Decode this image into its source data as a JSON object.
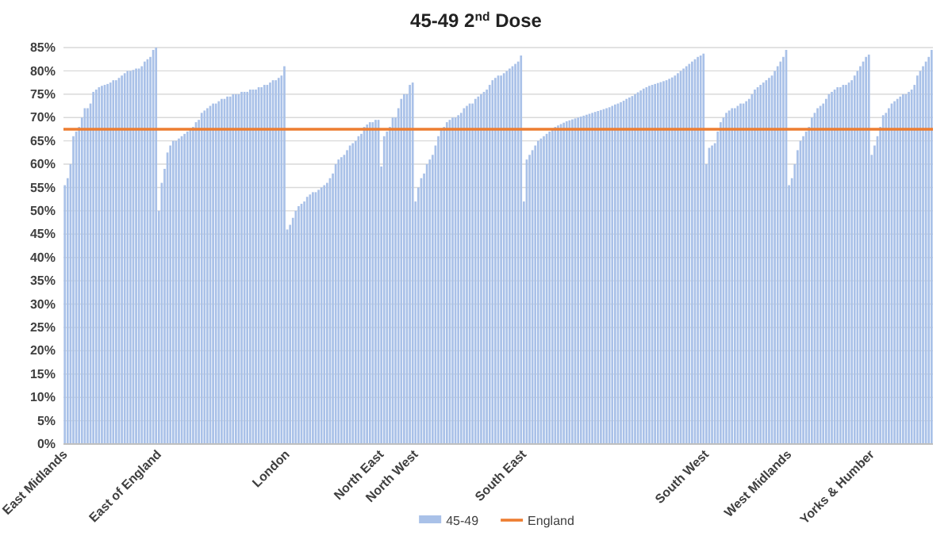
{
  "chart_data": {
    "type": "bar",
    "title": "45-49 2$^{nd}$ Dose",
    "categories": [
      "East Midlands",
      null,
      null,
      null,
      null,
      null,
      null,
      null,
      null,
      null,
      null,
      null,
      null,
      null,
      null,
      null,
      null,
      null,
      null,
      null,
      null,
      null,
      null,
      null,
      null,
      null,
      null,
      null,
      null,
      null,
      null,
      null,
      null,
      "East of England",
      null,
      null,
      null,
      null,
      null,
      null,
      null,
      null,
      null,
      null,
      null,
      null,
      null,
      null,
      null,
      null,
      null,
      null,
      null,
      null,
      null,
      null,
      null,
      null,
      null,
      null,
      null,
      null,
      null,
      null,
      null,
      null,
      null,
      null,
      null,
      null,
      null,
      null,
      null,
      null,
      null,
      null,
      null,
      null,
      "London",
      null,
      null,
      null,
      null,
      null,
      null,
      null,
      null,
      null,
      null,
      null,
      null,
      null,
      null,
      null,
      null,
      null,
      null,
      null,
      null,
      null,
      null,
      null,
      null,
      null,
      null,
      null,
      null,
      null,
      null,
      null,
      null,
      "North East",
      null,
      null,
      null,
      null,
      null,
      null,
      null,
      null,
      null,
      null,
      null,
      "North West",
      null,
      null,
      null,
      null,
      null,
      null,
      null,
      null,
      null,
      null,
      null,
      null,
      null,
      null,
      null,
      null,
      null,
      null,
      null,
      null,
      null,
      null,
      null,
      null,
      null,
      null,
      null,
      null,
      null,
      null,
      null,
      null,
      null,
      null,
      null,
      null,
      null,
      "South East",
      null,
      null,
      null,
      null,
      null,
      null,
      null,
      null,
      null,
      null,
      null,
      null,
      null,
      null,
      null,
      null,
      null,
      null,
      null,
      null,
      null,
      null,
      null,
      null,
      null,
      null,
      null,
      null,
      null,
      null,
      null,
      null,
      null,
      null,
      null,
      null,
      null,
      null,
      null,
      null,
      null,
      null,
      null,
      null,
      null,
      null,
      null,
      null,
      null,
      null,
      null,
      null,
      null,
      null,
      null,
      null,
      null,
      null,
      null,
      null,
      null,
      null,
      null,
      "South West",
      null,
      null,
      null,
      null,
      null,
      null,
      null,
      null,
      null,
      null,
      null,
      null,
      null,
      null,
      null,
      null,
      null,
      null,
      null,
      null,
      null,
      null,
      null,
      null,
      null,
      null,
      null,
      null,
      "West Midlands",
      null,
      null,
      null,
      null,
      null,
      null,
      null,
      null,
      null,
      null,
      null,
      null,
      null,
      null,
      null,
      null,
      null,
      null,
      null,
      null,
      null,
      null,
      null,
      null,
      null,
      null,
      null,
      null,
      "Yorks & Humber",
      null,
      null,
      null,
      null,
      null,
      null,
      null,
      null,
      null,
      null,
      null,
      null,
      null,
      null,
      null,
      null,
      null,
      null,
      null,
      null,
      null
    ],
    "series": [
      {
        "name": "45-49",
        "color": "#a9c1e8",
        "values": [
          55.5,
          57,
          60,
          66,
          67,
          68,
          70,
          72,
          72,
          73,
          75.5,
          76,
          76.5,
          76.8,
          77,
          77.2,
          77.5,
          78,
          78,
          78.5,
          79,
          79.5,
          80,
          80,
          80.2,
          80.5,
          80.5,
          81,
          82,
          82.5,
          83,
          84.5,
          85,
          50,
          56,
          59,
          62.5,
          64,
          65,
          65,
          65.5,
          66,
          66.5,
          67,
          67.5,
          68,
          69,
          69.5,
          71,
          71.5,
          72,
          72.5,
          73,
          73,
          73.5,
          74,
          74,
          74.5,
          74.5,
          75,
          75,
          75,
          75.5,
          75.5,
          75.5,
          76,
          76,
          76,
          76.5,
          76.5,
          77,
          77,
          77.5,
          78,
          78,
          78.5,
          79,
          81,
          46,
          47,
          48.5,
          50,
          51,
          51.5,
          52,
          53,
          53.5,
          54,
          54,
          54.5,
          55,
          55.5,
          56,
          57,
          58,
          60,
          61,
          61.5,
          62,
          63,
          64,
          64.5,
          65,
          66,
          66.5,
          68,
          68.5,
          69,
          69,
          69.5,
          69.5,
          59.5,
          66,
          67,
          68,
          70,
          70,
          72,
          74,
          75,
          75,
          77,
          77.5,
          52,
          55,
          57,
          58,
          60,
          61,
          62,
          64,
          66,
          67.5,
          68,
          69,
          69.5,
          70,
          70,
          70.5,
          71,
          72,
          72.5,
          73,
          73,
          74,
          74.5,
          75,
          75.5,
          76,
          77,
          78,
          78.5,
          79,
          79,
          79.5,
          80,
          80.5,
          81,
          81.5,
          82,
          83.3,
          52,
          61,
          62,
          63,
          64,
          65,
          65.5,
          66,
          66.5,
          67,
          67.5,
          68,
          68.3,
          68.6,
          68.9,
          69.2,
          69.4,
          69.6,
          69.8,
          70,
          70.2,
          70.4,
          70.6,
          70.8,
          71,
          71.2,
          71.4,
          71.6,
          71.8,
          72,
          72.2,
          72.5,
          72.8,
          73,
          73.3,
          73.6,
          74,
          74.3,
          74.6,
          75,
          75.4,
          75.8,
          76.2,
          76.5,
          76.8,
          77,
          77.2,
          77.4,
          77.6,
          77.8,
          78,
          78.3,
          78.6,
          79,
          79.5,
          80,
          80.5,
          81,
          81.5,
          82,
          82.5,
          83,
          83.3,
          83.7,
          60,
          63.5,
          64,
          64.5,
          67,
          69,
          70,
          71,
          71.5,
          72,
          72,
          72.5,
          73,
          73,
          73.5,
          74,
          75,
          76,
          76.5,
          77,
          77.5,
          78,
          78.5,
          79,
          80,
          81,
          82,
          83,
          84.5,
          55.5,
          57,
          60,
          63,
          65,
          66,
          67,
          68,
          70,
          71,
          72,
          72.5,
          73,
          74,
          75,
          75.5,
          76,
          76.5,
          76.5,
          77,
          77,
          77.5,
          78,
          79,
          80,
          81,
          82,
          83,
          83.5,
          62,
          64,
          66,
          68,
          70.5,
          71,
          72,
          73,
          73.5,
          74,
          74.5,
          75,
          75,
          75.5,
          76,
          77,
          79,
          80,
          81,
          82,
          83,
          84.5
        ]
      }
    ],
    "ref_lines": [
      {
        "axis": "y",
        "value": 67.5,
        "label": "England",
        "color": "#ed7d31"
      }
    ],
    "ylim": [
      0,
      85
    ],
    "yticks": [
      {
        "value": 0,
        "label": "0%"
      },
      {
        "value": 5,
        "label": "5%"
      },
      {
        "value": 10,
        "label": "10%"
      },
      {
        "value": 15,
        "label": "15%"
      },
      {
        "value": 20,
        "label": "20%"
      },
      {
        "value": 25,
        "label": "25%"
      },
      {
        "value": 30,
        "label": "30%"
      },
      {
        "value": 35,
        "label": "35%"
      },
      {
        "value": 40,
        "label": "40%"
      },
      {
        "value": 45,
        "label": "45%"
      },
      {
        "value": 50,
        "label": "50%"
      },
      {
        "value": 55,
        "label": "55%"
      },
      {
        "value": 60,
        "label": "60%"
      },
      {
        "value": 65,
        "label": "65%"
      },
      {
        "value": 70,
        "label": "70%"
      },
      {
        "value": 75,
        "label": "75%"
      },
      {
        "value": 80,
        "label": "80%"
      },
      {
        "value": 85,
        "label": "85%"
      }
    ],
    "grid": "y",
    "legend": "bottom"
  }
}
